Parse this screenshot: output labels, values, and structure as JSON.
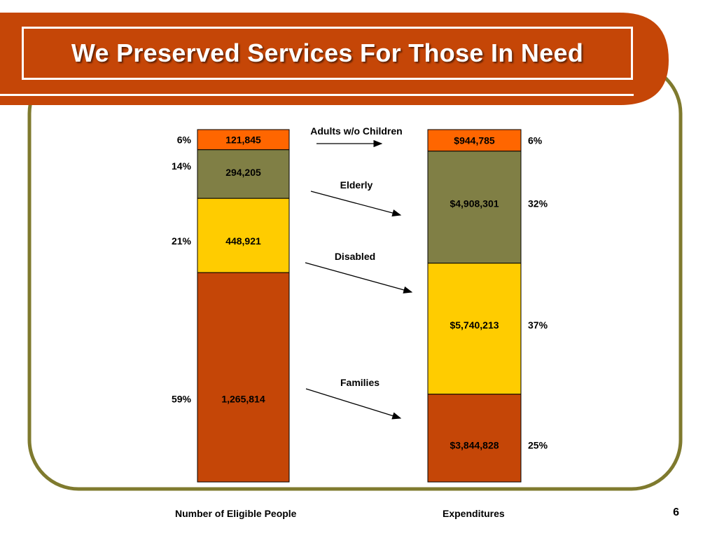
{
  "slide": {
    "title": "We Preserved Services For Those In Need",
    "page_number": "6",
    "colors": {
      "header_band": "#c54607",
      "frame_border": "#7f7a2e"
    }
  },
  "chart_data": {
    "type": "bar",
    "stacked": true,
    "normalized": true,
    "columns": [
      {
        "label": "Number of Eligible People",
        "segments": [
          {
            "category": "Adults w/o Children",
            "value": 121845,
            "value_label": "121,845",
            "percent_label": "6%"
          },
          {
            "category": "Elderly",
            "value": 294205,
            "value_label": "294,205",
            "percent_label": "14%"
          },
          {
            "category": "Disabled",
            "value": 448921,
            "value_label": "448,921",
            "percent_label": "21%"
          },
          {
            "category": "Families",
            "value": 1265814,
            "value_label": "1,265,814",
            "percent_label": "59%"
          }
        ]
      },
      {
        "label": "Expenditures",
        "segments": [
          {
            "category": "Adults w/o Children",
            "value": 944785,
            "value_label": "$944,785",
            "percent_label": "6%"
          },
          {
            "category": "Elderly",
            "value": 4908301,
            "value_label": "$4,908,301",
            "percent_label": "32%"
          },
          {
            "category": "Disabled",
            "value": 5740213,
            "value_label": "$5,740,213",
            "percent_label": "37%"
          },
          {
            "category": "Families",
            "value": 3844828,
            "value_label": "$3,844,828",
            "percent_label": "25%"
          }
        ]
      }
    ],
    "categories": [
      "Adults w/o Children",
      "Elderly",
      "Disabled",
      "Families"
    ],
    "colors": {
      "Adults w/o Children": "#ff6600",
      "Elderly": "#807f45",
      "Disabled": "#ffcc00",
      "Families": "#c54607"
    }
  }
}
